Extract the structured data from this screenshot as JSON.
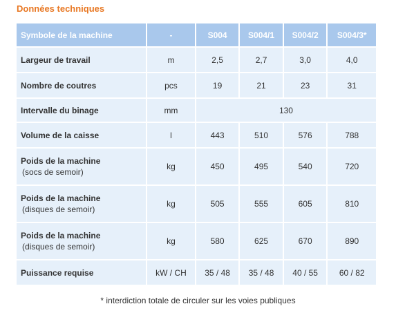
{
  "title": "Données techniques",
  "header": [
    "Symbole de la machine",
    "-",
    "S004",
    "S004/1",
    "S004/2",
    "S004/3*"
  ],
  "rows": [
    {
      "label": "Largeur de travail",
      "sub": "",
      "unit": "m",
      "values": [
        "2,5",
        "2,7",
        "3,0",
        "4,0"
      ]
    },
    {
      "label": "Nombre de coutres",
      "sub": "",
      "unit": "pcs",
      "values": [
        "19",
        "21",
        "23",
        "31"
      ]
    },
    {
      "label": "Intervalle du binage",
      "sub": "",
      "unit": "mm",
      "span_value": "130"
    },
    {
      "label": "Volume de la caisse",
      "sub": "",
      "unit": "l",
      "values": [
        "443",
        "510",
        "576",
        "788"
      ]
    },
    {
      "label": "Poids de la machine",
      "sub": "(socs de semoir)",
      "unit": "kg",
      "values": [
        "450",
        "495",
        "540",
        "720"
      ]
    },
    {
      "label": "Poids de la machine",
      "sub": "(disques de semoir)",
      "unit": "kg",
      "values": [
        "505",
        "555",
        "605",
        "810"
      ]
    },
    {
      "label": "Poids de la machine",
      "sub": "(disques de semoir)",
      "unit": "kg",
      "values": [
        "580",
        "625",
        "670",
        "890"
      ]
    },
    {
      "label": "Puissance requise",
      "sub": "",
      "unit": "kW / CH",
      "values": [
        "35 / 48",
        "35 / 48",
        "40 / 55",
        "60 / 82"
      ]
    }
  ],
  "footnote": "* interdiction totale de circuler sur les voies publiques",
  "colors": {
    "title": "#e87722",
    "header_bg": "#a9c8ec",
    "row_bg": "#e6f0fa"
  }
}
